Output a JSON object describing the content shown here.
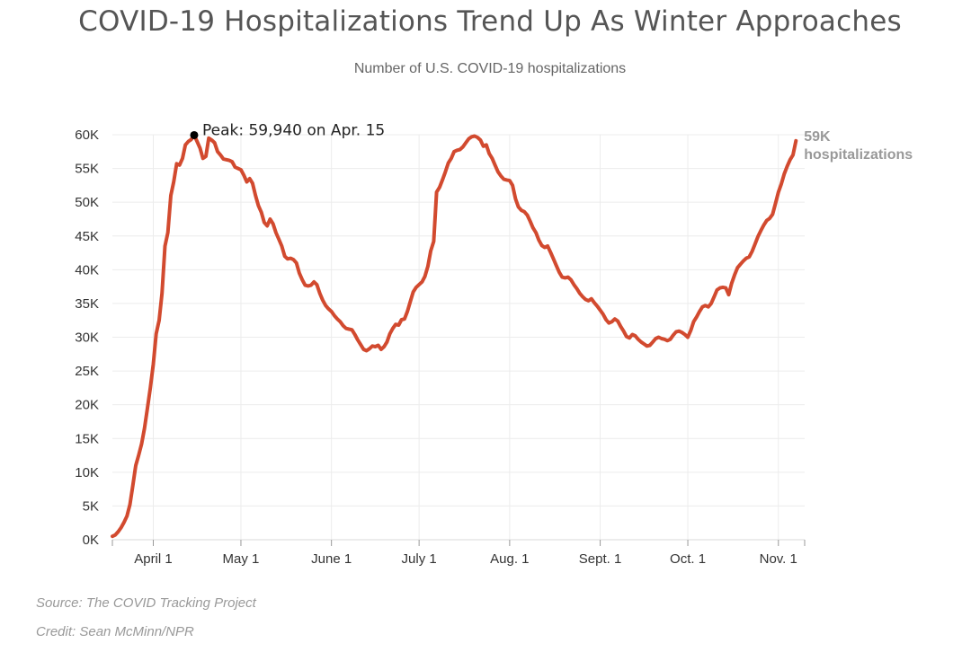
{
  "header": {
    "title": "COVID-19 Hospitalizations Trend Up As Winter Approaches",
    "subtitle": "Number of U.S. COVID-19 hospitalizations"
  },
  "footer": {
    "source": "Source: The COVID Tracking Project",
    "credit": "Credit: Sean McMinn/NPR"
  },
  "chart_data": {
    "type": "line",
    "title": "COVID-19 Hospitalizations Trend Up As Winter Approaches",
    "subtitle": "Number of U.S. COVID-19 hospitalizations",
    "xlabel": "",
    "ylabel": "",
    "ylim": [
      0,
      60000
    ],
    "xlim": [
      "2020-03-18",
      "2020-11-10"
    ],
    "grid": true,
    "line_color": "#d24a2f",
    "y_ticks": [
      0,
      5000,
      10000,
      15000,
      20000,
      25000,
      30000,
      35000,
      40000,
      45000,
      50000,
      55000,
      60000
    ],
    "y_tick_labels": [
      "0K",
      "5K",
      "10K",
      "15K",
      "20K",
      "25K",
      "30K",
      "35K",
      "40K",
      "45K",
      "50K",
      "55K",
      "60K"
    ],
    "x_ticks": [
      {
        "date": "2020-04-01",
        "label": "April 1"
      },
      {
        "date": "2020-05-01",
        "label": "May 1"
      },
      {
        "date": "2020-06-01",
        "label": "June 1"
      },
      {
        "date": "2020-07-01",
        "label": "July 1"
      },
      {
        "date": "2020-08-01",
        "label": "Aug. 1"
      },
      {
        "date": "2020-09-01",
        "label": "Sept. 1"
      },
      {
        "date": "2020-10-01",
        "label": "Oct. 1"
      },
      {
        "date": "2020-11-01",
        "label": "Nov. 1"
      }
    ],
    "series": [
      {
        "name": "",
        "points": [
          [
            "2020-03-18",
            500
          ],
          [
            "2020-03-19",
            700
          ],
          [
            "2020-03-20",
            1200
          ],
          [
            "2020-03-21",
            1800
          ],
          [
            "2020-03-22",
            2600
          ],
          [
            "2020-03-23",
            3500
          ],
          [
            "2020-03-24",
            5200
          ],
          [
            "2020-03-25",
            8000
          ],
          [
            "2020-03-26",
            11000
          ],
          [
            "2020-03-27",
            12500
          ],
          [
            "2020-03-28",
            14200
          ],
          [
            "2020-03-29",
            16500
          ],
          [
            "2020-03-30",
            19500
          ],
          [
            "2020-03-31",
            22500
          ],
          [
            "2020-04-01",
            26000
          ],
          [
            "2020-04-02",
            30500
          ],
          [
            "2020-04-03",
            32500
          ],
          [
            "2020-04-04",
            36500
          ],
          [
            "2020-04-05",
            43500
          ],
          [
            "2020-04-06",
            45500
          ],
          [
            "2020-04-07",
            51000
          ],
          [
            "2020-04-08",
            53000
          ],
          [
            "2020-04-09",
            55700
          ],
          [
            "2020-04-10",
            55500
          ],
          [
            "2020-04-11",
            56500
          ],
          [
            "2020-04-12",
            58500
          ],
          [
            "2020-04-13",
            59000
          ],
          [
            "2020-04-14",
            59300
          ],
          [
            "2020-04-15",
            59940
          ],
          [
            "2020-04-16",
            59000
          ],
          [
            "2020-04-17",
            58000
          ],
          [
            "2020-04-18",
            56500
          ],
          [
            "2020-04-19",
            56800
          ],
          [
            "2020-04-20",
            59500
          ],
          [
            "2020-04-21",
            59200
          ],
          [
            "2020-04-22",
            58800
          ],
          [
            "2020-04-23",
            57500
          ],
          [
            "2020-04-24",
            57000
          ],
          [
            "2020-04-25",
            56400
          ],
          [
            "2020-04-26",
            56300
          ],
          [
            "2020-04-27",
            56200
          ],
          [
            "2020-04-28",
            56000
          ],
          [
            "2020-04-29",
            55200
          ],
          [
            "2020-04-30",
            55000
          ],
          [
            "2020-05-01",
            54800
          ],
          [
            "2020-05-02",
            54000
          ],
          [
            "2020-05-03",
            53000
          ],
          [
            "2020-05-04",
            53500
          ],
          [
            "2020-05-05",
            52800
          ],
          [
            "2020-05-06",
            51000
          ],
          [
            "2020-05-07",
            49500
          ],
          [
            "2020-05-08",
            48500
          ],
          [
            "2020-05-09",
            47000
          ],
          [
            "2020-05-10",
            46500
          ],
          [
            "2020-05-11",
            47500
          ],
          [
            "2020-05-12",
            46800
          ],
          [
            "2020-05-13",
            45500
          ],
          [
            "2020-05-14",
            44500
          ],
          [
            "2020-05-15",
            43500
          ],
          [
            "2020-05-16",
            42000
          ],
          [
            "2020-05-17",
            41600
          ],
          [
            "2020-05-18",
            41700
          ],
          [
            "2020-05-19",
            41500
          ],
          [
            "2020-05-20",
            41000
          ],
          [
            "2020-05-21",
            39500
          ],
          [
            "2020-05-22",
            38500
          ],
          [
            "2020-05-23",
            37700
          ],
          [
            "2020-05-24",
            37600
          ],
          [
            "2020-05-25",
            37700
          ],
          [
            "2020-05-26",
            38200
          ],
          [
            "2020-05-27",
            37800
          ],
          [
            "2020-05-28",
            36500
          ],
          [
            "2020-05-29",
            35500
          ],
          [
            "2020-05-30",
            34700
          ],
          [
            "2020-05-31",
            34200
          ],
          [
            "2020-06-01",
            33800
          ],
          [
            "2020-06-02",
            33200
          ],
          [
            "2020-06-03",
            32700
          ],
          [
            "2020-06-04",
            32300
          ],
          [
            "2020-06-05",
            31700
          ],
          [
            "2020-06-06",
            31300
          ],
          [
            "2020-06-07",
            31200
          ],
          [
            "2020-06-08",
            31100
          ],
          [
            "2020-06-09",
            30400
          ],
          [
            "2020-06-10",
            29600
          ],
          [
            "2020-06-11",
            28900
          ],
          [
            "2020-06-12",
            28200
          ],
          [
            "2020-06-13",
            28000
          ],
          [
            "2020-06-14",
            28300
          ],
          [
            "2020-06-15",
            28700
          ],
          [
            "2020-06-16",
            28600
          ],
          [
            "2020-06-17",
            28800
          ],
          [
            "2020-06-18",
            28200
          ],
          [
            "2020-06-19",
            28600
          ],
          [
            "2020-06-20",
            29300
          ],
          [
            "2020-06-21",
            30500
          ],
          [
            "2020-06-22",
            31300
          ],
          [
            "2020-06-23",
            31900
          ],
          [
            "2020-06-24",
            31800
          ],
          [
            "2020-06-25",
            32600
          ],
          [
            "2020-06-26",
            32700
          ],
          [
            "2020-06-27",
            33800
          ],
          [
            "2020-06-28",
            35300
          ],
          [
            "2020-06-29",
            36700
          ],
          [
            "2020-06-30",
            37400
          ],
          [
            "2020-07-01",
            37800
          ],
          [
            "2020-07-02",
            38200
          ],
          [
            "2020-07-03",
            39000
          ],
          [
            "2020-07-04",
            40500
          ],
          [
            "2020-07-05",
            42800
          ],
          [
            "2020-07-06",
            44200
          ],
          [
            "2020-07-07",
            51500
          ],
          [
            "2020-07-08",
            52200
          ],
          [
            "2020-07-09",
            53300
          ],
          [
            "2020-07-10",
            54500
          ],
          [
            "2020-07-11",
            55800
          ],
          [
            "2020-07-12",
            56500
          ],
          [
            "2020-07-13",
            57500
          ],
          [
            "2020-07-14",
            57700
          ],
          [
            "2020-07-15",
            57800
          ],
          [
            "2020-07-16",
            58200
          ],
          [
            "2020-07-17",
            58800
          ],
          [
            "2020-07-18",
            59400
          ],
          [
            "2020-07-19",
            59700
          ],
          [
            "2020-07-20",
            59800
          ],
          [
            "2020-07-21",
            59600
          ],
          [
            "2020-07-22",
            59200
          ],
          [
            "2020-07-23",
            58300
          ],
          [
            "2020-07-24",
            58500
          ],
          [
            "2020-07-25",
            57200
          ],
          [
            "2020-07-26",
            56500
          ],
          [
            "2020-07-27",
            55500
          ],
          [
            "2020-07-28",
            54500
          ],
          [
            "2020-07-29",
            53900
          ],
          [
            "2020-07-30",
            53400
          ],
          [
            "2020-07-31",
            53300
          ],
          [
            "2020-08-01",
            53200
          ],
          [
            "2020-08-02",
            52500
          ],
          [
            "2020-08-03",
            50500
          ],
          [
            "2020-08-04",
            49300
          ],
          [
            "2020-08-05",
            48800
          ],
          [
            "2020-08-06",
            48600
          ],
          [
            "2020-08-07",
            48100
          ],
          [
            "2020-08-08",
            47200
          ],
          [
            "2020-08-09",
            46200
          ],
          [
            "2020-08-10",
            45500
          ],
          [
            "2020-08-11",
            44400
          ],
          [
            "2020-08-12",
            43600
          ],
          [
            "2020-08-13",
            43300
          ],
          [
            "2020-08-14",
            43500
          ],
          [
            "2020-08-15",
            42600
          ],
          [
            "2020-08-16",
            41600
          ],
          [
            "2020-08-17",
            40600
          ],
          [
            "2020-08-18",
            39600
          ],
          [
            "2020-08-19",
            38900
          ],
          [
            "2020-08-20",
            38800
          ],
          [
            "2020-08-21",
            38900
          ],
          [
            "2020-08-22",
            38500
          ],
          [
            "2020-08-23",
            37800
          ],
          [
            "2020-08-24",
            37200
          ],
          [
            "2020-08-25",
            36500
          ],
          [
            "2020-08-26",
            36000
          ],
          [
            "2020-08-27",
            35600
          ],
          [
            "2020-08-28",
            35400
          ],
          [
            "2020-08-29",
            35700
          ],
          [
            "2020-08-30",
            35100
          ],
          [
            "2020-08-31",
            34600
          ],
          [
            "2020-09-01",
            34000
          ],
          [
            "2020-09-02",
            33400
          ],
          [
            "2020-09-03",
            32600
          ],
          [
            "2020-09-04",
            32100
          ],
          [
            "2020-09-05",
            32300
          ],
          [
            "2020-09-06",
            32700
          ],
          [
            "2020-09-07",
            32400
          ],
          [
            "2020-09-08",
            31600
          ],
          [
            "2020-09-09",
            30900
          ],
          [
            "2020-09-10",
            30100
          ],
          [
            "2020-09-11",
            29900
          ],
          [
            "2020-09-12",
            30400
          ],
          [
            "2020-09-13",
            30200
          ],
          [
            "2020-09-14",
            29700
          ],
          [
            "2020-09-15",
            29300
          ],
          [
            "2020-09-16",
            29000
          ],
          [
            "2020-09-17",
            28700
          ],
          [
            "2020-09-18",
            28800
          ],
          [
            "2020-09-19",
            29300
          ],
          [
            "2020-09-20",
            29800
          ],
          [
            "2020-09-21",
            30000
          ],
          [
            "2020-09-22",
            29800
          ],
          [
            "2020-09-23",
            29700
          ],
          [
            "2020-09-24",
            29500
          ],
          [
            "2020-09-25",
            29700
          ],
          [
            "2020-09-26",
            30300
          ],
          [
            "2020-09-27",
            30800
          ],
          [
            "2020-09-28",
            30900
          ],
          [
            "2020-09-29",
            30700
          ],
          [
            "2020-09-30",
            30400
          ],
          [
            "2020-10-01",
            30000
          ],
          [
            "2020-10-02",
            31000
          ],
          [
            "2020-10-03",
            32300
          ],
          [
            "2020-10-04",
            33000
          ],
          [
            "2020-10-05",
            33800
          ],
          [
            "2020-10-06",
            34500
          ],
          [
            "2020-10-07",
            34700
          ],
          [
            "2020-10-08",
            34500
          ],
          [
            "2020-10-09",
            35000
          ],
          [
            "2020-10-10",
            36000
          ],
          [
            "2020-10-11",
            37000
          ],
          [
            "2020-10-12",
            37300
          ],
          [
            "2020-10-13",
            37400
          ],
          [
            "2020-10-14",
            37300
          ],
          [
            "2020-10-15",
            36300
          ],
          [
            "2020-10-16",
            38000
          ],
          [
            "2020-10-17",
            39200
          ],
          [
            "2020-10-18",
            40300
          ],
          [
            "2020-10-19",
            40800
          ],
          [
            "2020-10-20",
            41300
          ],
          [
            "2020-10-21",
            41700
          ],
          [
            "2020-10-22",
            41900
          ],
          [
            "2020-10-23",
            42700
          ],
          [
            "2020-10-24",
            43800
          ],
          [
            "2020-10-25",
            44900
          ],
          [
            "2020-10-26",
            45800
          ],
          [
            "2020-10-27",
            46600
          ],
          [
            "2020-10-28",
            47300
          ],
          [
            "2020-10-29",
            47600
          ],
          [
            "2020-10-30",
            48200
          ],
          [
            "2020-10-31",
            49800
          ],
          [
            "2020-11-01",
            51500
          ],
          [
            "2020-11-02",
            52700
          ],
          [
            "2020-11-03",
            54200
          ],
          [
            "2020-11-04",
            55300
          ],
          [
            "2020-11-05",
            56300
          ],
          [
            "2020-11-06",
            57000
          ],
          [
            "2020-11-07",
            59100
          ]
        ]
      }
    ],
    "annotations": [
      {
        "date": "2020-04-15",
        "value": 59940,
        "text": "Peak: 59,940 on Apr. 15",
        "marker": true
      },
      {
        "date": "2020-11-07",
        "value": 59100,
        "text_lines": [
          "59K",
          "hospitalizations"
        ]
      }
    ]
  }
}
